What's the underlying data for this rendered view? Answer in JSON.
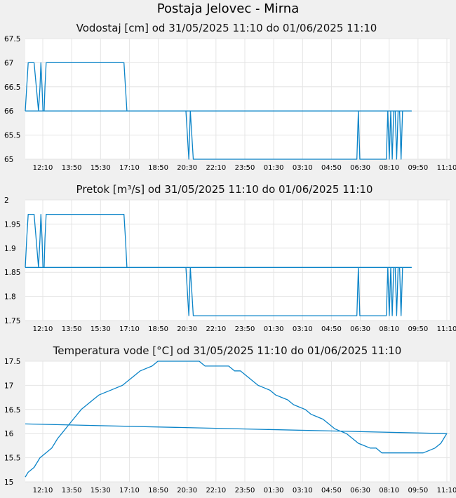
{
  "page": {
    "title": "Postaja Jelovec - Mirna"
  },
  "colors": {
    "line": "#0b84c8",
    "plot_bg": "#ffffff",
    "page_bg": "#f0f0f0",
    "grid": "#e4e4e4"
  },
  "chart_data": [
    {
      "type": "line",
      "title": "Vodostaj [cm] od 31/05/2025 11:10 do 01/06/2025 11:10",
      "xlabel": "",
      "ylabel": "",
      "ylim": [
        65,
        67.5
      ],
      "ytick_labels": [
        "65",
        "65.5",
        "66",
        "66.5",
        "67",
        "67.5"
      ],
      "xtick_labels": [
        "12:10",
        "13:50",
        "15:30",
        "17:10",
        "18:50",
        "20:30",
        "22:10",
        "23:50",
        "01:30",
        "03:10",
        "04:50",
        "06:30",
        "08:10",
        "09:50",
        "11:10"
      ],
      "grid": true,
      "x": [
        "11:10",
        "11:15",
        "11:20",
        "11:30",
        "11:40",
        "11:55",
        "12:00",
        "12:03",
        "12:07",
        "12:10",
        "12:14",
        "12:17",
        "12:21",
        "12:25",
        "12:32",
        "12:36",
        "12:40",
        "12:45",
        "16:45",
        "16:50",
        "16:55",
        "20:15",
        "20:20",
        "20:25",
        "20:30",
        "20:35",
        "20:40",
        "05:55",
        "06:00",
        "06:05",
        "06:10",
        "06:15",
        "07:35",
        "07:40",
        "07:45",
        "07:50",
        "07:55",
        "08:00",
        "08:05",
        "08:10",
        "08:15",
        "08:20",
        "08:25",
        "08:30",
        "08:35",
        "08:40",
        "08:45",
        "08:50",
        "08:55",
        "09:00",
        "11:10"
      ],
      "values": [
        66,
        66.5,
        67,
        67,
        67,
        66,
        66.5,
        67,
        66.5,
        66,
        66,
        66.5,
        67,
        67,
        67,
        67,
        67,
        67,
        67,
        66.5,
        66,
        66,
        65.5,
        65,
        66,
        65.5,
        65,
        65,
        66,
        65,
        65,
        65,
        65,
        66,
        65,
        66,
        65,
        66,
        66,
        65,
        66,
        66,
        65,
        66,
        66,
        66,
        66,
        66,
        66,
        66,
        66
      ]
    },
    {
      "type": "line",
      "title": "Pretok [m³/s] od 31/05/2025 11:10 do 01/06/2025 11:10",
      "xlabel": "",
      "ylabel": "",
      "ylim": [
        1.75,
        2
      ],
      "ytick_labels": [
        "1.75",
        "1.8",
        "1.85",
        "1.9",
        "1.95",
        "2"
      ],
      "xtick_labels": [
        "12:10",
        "13:50",
        "15:30",
        "17:10",
        "18:50",
        "20:30",
        "22:10",
        "23:50",
        "01:30",
        "03:10",
        "04:50",
        "06:30",
        "08:10",
        "09:50",
        "11:10"
      ],
      "grid": true,
      "x": [
        "11:10",
        "11:15",
        "11:20",
        "11:30",
        "11:40",
        "11:55",
        "12:00",
        "12:03",
        "12:07",
        "12:10",
        "12:14",
        "12:17",
        "12:21",
        "12:25",
        "12:32",
        "12:36",
        "12:40",
        "12:45",
        "16:45",
        "16:50",
        "16:55",
        "20:15",
        "20:20",
        "20:25",
        "20:30",
        "20:35",
        "20:40",
        "05:55",
        "06:00",
        "06:05",
        "06:10",
        "06:15",
        "07:35",
        "07:40",
        "07:45",
        "07:50",
        "07:55",
        "08:00",
        "08:05",
        "08:10",
        "08:15",
        "08:20",
        "08:25",
        "08:30",
        "08:35",
        "08:40",
        "08:45",
        "08:50",
        "08:55",
        "09:00",
        "11:10"
      ],
      "values": [
        1.86,
        1.92,
        1.97,
        1.97,
        1.97,
        1.86,
        1.92,
        1.97,
        1.92,
        1.86,
        1.86,
        1.92,
        1.97,
        1.97,
        1.97,
        1.97,
        1.97,
        1.97,
        1.97,
        1.92,
        1.86,
        1.86,
        1.81,
        1.76,
        1.86,
        1.81,
        1.76,
        1.76,
        1.86,
        1.76,
        1.76,
        1.76,
        1.76,
        1.86,
        1.76,
        1.86,
        1.76,
        1.86,
        1.86,
        1.76,
        1.86,
        1.86,
        1.76,
        1.86,
        1.86,
        1.86,
        1.86,
        1.86,
        1.86,
        1.86,
        1.86
      ]
    },
    {
      "type": "line",
      "title": "Temperatura vode [°C] od 31/05/2025 11:10 do 01/06/2025 11:10",
      "xlabel": "",
      "ylabel": "",
      "ylim": [
        15,
        17.5
      ],
      "ytick_labels": [
        "15",
        "15.5",
        "16",
        "16.5",
        "17",
        "17.5"
      ],
      "xtick_labels": [
        "12:10",
        "13:50",
        "15:30",
        "17:10",
        "18:50",
        "20:30",
        "22:10",
        "23:50",
        "01:30",
        "03:10",
        "04:50",
        "06:30",
        "08:10",
        "09:50",
        "11:10"
      ],
      "grid": true,
      "x": [
        "11:10",
        "11:20",
        "11:40",
        "12:00",
        "12:20",
        "12:40",
        "13:00",
        "13:20",
        "13:40",
        "14:00",
        "14:20",
        "14:40",
        "15:00",
        "15:20",
        "15:40",
        "16:00",
        "16:20",
        "16:40",
        "17:00",
        "17:20",
        "17:40",
        "18:00",
        "18:20",
        "18:40",
        "19:00",
        "20:00",
        "21:00",
        "21:20",
        "22:00",
        "22:40",
        "23:00",
        "23:20",
        "23:40",
        "00:00",
        "00:20",
        "00:40",
        "01:00",
        "01:20",
        "01:40",
        "02:00",
        "02:20",
        "02:40",
        "03:00",
        "03:20",
        "03:40",
        "04:00",
        "04:20",
        "04:40",
        "05:00",
        "05:20",
        "05:40",
        "06:00",
        "06:20",
        "06:40",
        "07:00",
        "07:20",
        "07:40",
        "08:00",
        "08:20",
        "08:40",
        "09:00",
        "09:20",
        "09:40",
        "10:00",
        "10:20",
        "10:40",
        "11:00",
        "11:10"
      ],
      "values": [
        15.1,
        15.2,
        15.3,
        15.5,
        15.6,
        15.7,
        15.9,
        16.05,
        16.2,
        16.35,
        16.5,
        16.6,
        16.7,
        16.8,
        16.85,
        16.9,
        16.95,
        17.0,
        17.1,
        17.2,
        17.3,
        17.35,
        17.4,
        17.5,
        17.5,
        17.5,
        17.5,
        17.4,
        17.4,
        17.4,
        17.3,
        17.3,
        17.2,
        17.1,
        17.0,
        16.95,
        16.9,
        16.8,
        16.75,
        16.7,
        16.6,
        16.55,
        16.5,
        16.4,
        16.35,
        16.3,
        16.2,
        16.1,
        16.05,
        16.0,
        15.9,
        15.8,
        15.75,
        15.7,
        15.7,
        15.6,
        15.6,
        15.6,
        15.6,
        15.6,
        15.6,
        15.6,
        15.6,
        15.65,
        15.7,
        15.8,
        16.0,
        16.2
      ]
    }
  ]
}
